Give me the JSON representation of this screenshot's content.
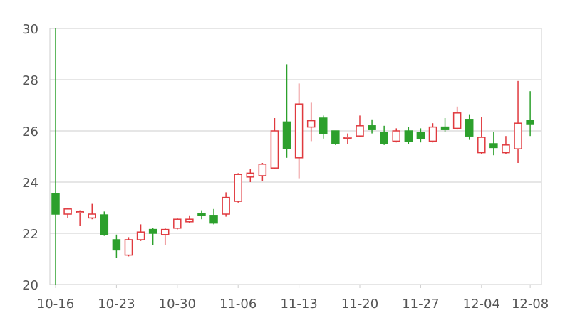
{
  "chart_data": {
    "type": "candlestick",
    "title": "",
    "xlabel": "",
    "ylabel": "",
    "ylim": [
      20,
      30
    ],
    "yticks": [
      20,
      22,
      24,
      26,
      28,
      30
    ],
    "xtick_labels": [
      "10-16",
      "10-23",
      "10-30",
      "11-06",
      "11-13",
      "11-20",
      "11-27",
      "12-04",
      "12-08"
    ],
    "grid": "horizontal",
    "colors": {
      "up": "#e0393e",
      "down": "#2ca02c",
      "grid": "#cccccc",
      "axis": "#cccccc"
    },
    "series": [
      {
        "date": "10-16",
        "open": 23.55,
        "close": 22.75,
        "high": 30.0,
        "low": 20.0
      },
      {
        "date": "10-17",
        "open": 22.75,
        "close": 22.95,
        "high": 22.98,
        "low": 22.6
      },
      {
        "date": "10-18",
        "open": 22.8,
        "close": 22.85,
        "high": 22.9,
        "low": 22.3
      },
      {
        "date": "10-19",
        "open": 22.6,
        "close": 22.75,
        "high": 23.15,
        "low": 22.55
      },
      {
        "date": "10-20",
        "open": 22.72,
        "close": 21.95,
        "high": 22.85,
        "low": 21.9
      },
      {
        "date": "10-23",
        "open": 21.75,
        "close": 21.35,
        "high": 21.95,
        "low": 21.05
      },
      {
        "date": "10-24",
        "open": 21.15,
        "close": 21.75,
        "high": 21.85,
        "low": 21.1
      },
      {
        "date": "10-25",
        "open": 21.75,
        "close": 22.05,
        "high": 22.35,
        "low": 21.7
      },
      {
        "date": "10-26",
        "open": 22.15,
        "close": 22.0,
        "high": 22.2,
        "low": 21.55
      },
      {
        "date": "10-27",
        "open": 21.95,
        "close": 22.15,
        "high": 22.2,
        "low": 21.55
      },
      {
        "date": "10-30",
        "open": 22.2,
        "close": 22.55,
        "high": 22.6,
        "low": 22.15
      },
      {
        "date": "10-31",
        "open": 22.45,
        "close": 22.55,
        "high": 22.7,
        "low": 22.4
      },
      {
        "date": "11-01",
        "open": 22.78,
        "close": 22.7,
        "high": 22.9,
        "low": 22.55
      },
      {
        "date": "11-02",
        "open": 22.7,
        "close": 22.4,
        "high": 22.95,
        "low": 22.35
      },
      {
        "date": "11-03",
        "open": 22.75,
        "close": 23.4,
        "high": 23.6,
        "low": 22.65
      },
      {
        "date": "11-06",
        "open": 23.25,
        "close": 24.3,
        "high": 24.35,
        "low": 23.2
      },
      {
        "date": "11-07",
        "open": 24.2,
        "close": 24.35,
        "high": 24.5,
        "low": 24.0
      },
      {
        "date": "11-08",
        "open": 24.25,
        "close": 24.7,
        "high": 24.75,
        "low": 24.05
      },
      {
        "date": "11-09",
        "open": 24.55,
        "close": 26.0,
        "high": 26.5,
        "low": 24.5
      },
      {
        "date": "11-10",
        "open": 26.35,
        "close": 25.3,
        "high": 28.6,
        "low": 24.95
      },
      {
        "date": "11-13",
        "open": 24.95,
        "close": 27.05,
        "high": 27.85,
        "low": 24.15
      },
      {
        "date": "11-14",
        "open": 26.15,
        "close": 26.4,
        "high": 27.1,
        "low": 25.6
      },
      {
        "date": "11-15",
        "open": 26.5,
        "close": 25.9,
        "high": 26.6,
        "low": 25.7
      },
      {
        "date": "11-16",
        "open": 26.0,
        "close": 25.5,
        "high": 26.0,
        "low": 25.45
      },
      {
        "date": "11-17",
        "open": 25.7,
        "close": 25.75,
        "high": 25.9,
        "low": 25.5
      },
      {
        "date": "11-20",
        "open": 25.8,
        "close": 26.2,
        "high": 26.6,
        "low": 25.75
      },
      {
        "date": "11-21",
        "open": 26.2,
        "close": 26.05,
        "high": 26.45,
        "low": 25.9
      },
      {
        "date": "11-22",
        "open": 25.95,
        "close": 25.5,
        "high": 26.2,
        "low": 25.45
      },
      {
        "date": "11-23",
        "open": 25.6,
        "close": 26.0,
        "high": 26.1,
        "low": 25.55
      },
      {
        "date": "11-24",
        "open": 26.0,
        "close": 25.6,
        "high": 26.15,
        "low": 25.5
      },
      {
        "date": "11-27",
        "open": 25.95,
        "close": 25.7,
        "high": 26.1,
        "low": 25.55
      },
      {
        "date": "11-28",
        "open": 25.6,
        "close": 26.15,
        "high": 26.3,
        "low": 25.55
      },
      {
        "date": "11-29",
        "open": 26.15,
        "close": 26.05,
        "high": 26.5,
        "low": 25.95
      },
      {
        "date": "11-30",
        "open": 26.1,
        "close": 26.7,
        "high": 26.95,
        "low": 26.05
      },
      {
        "date": "12-01",
        "open": 26.45,
        "close": 25.8,
        "high": 26.65,
        "low": 25.65
      },
      {
        "date": "12-04",
        "open": 25.15,
        "close": 25.75,
        "high": 26.55,
        "low": 25.1
      },
      {
        "date": "12-05",
        "open": 25.5,
        "close": 25.35,
        "high": 25.95,
        "low": 25.05
      },
      {
        "date": "12-06",
        "open": 25.15,
        "close": 25.45,
        "high": 25.8,
        "low": 25.1
      },
      {
        "date": "12-07",
        "open": 25.3,
        "close": 26.3,
        "high": 27.95,
        "low": 24.75
      },
      {
        "date": "12-08",
        "open": 26.4,
        "close": 26.25,
        "high": 27.55,
        "low": 25.8
      }
    ]
  }
}
